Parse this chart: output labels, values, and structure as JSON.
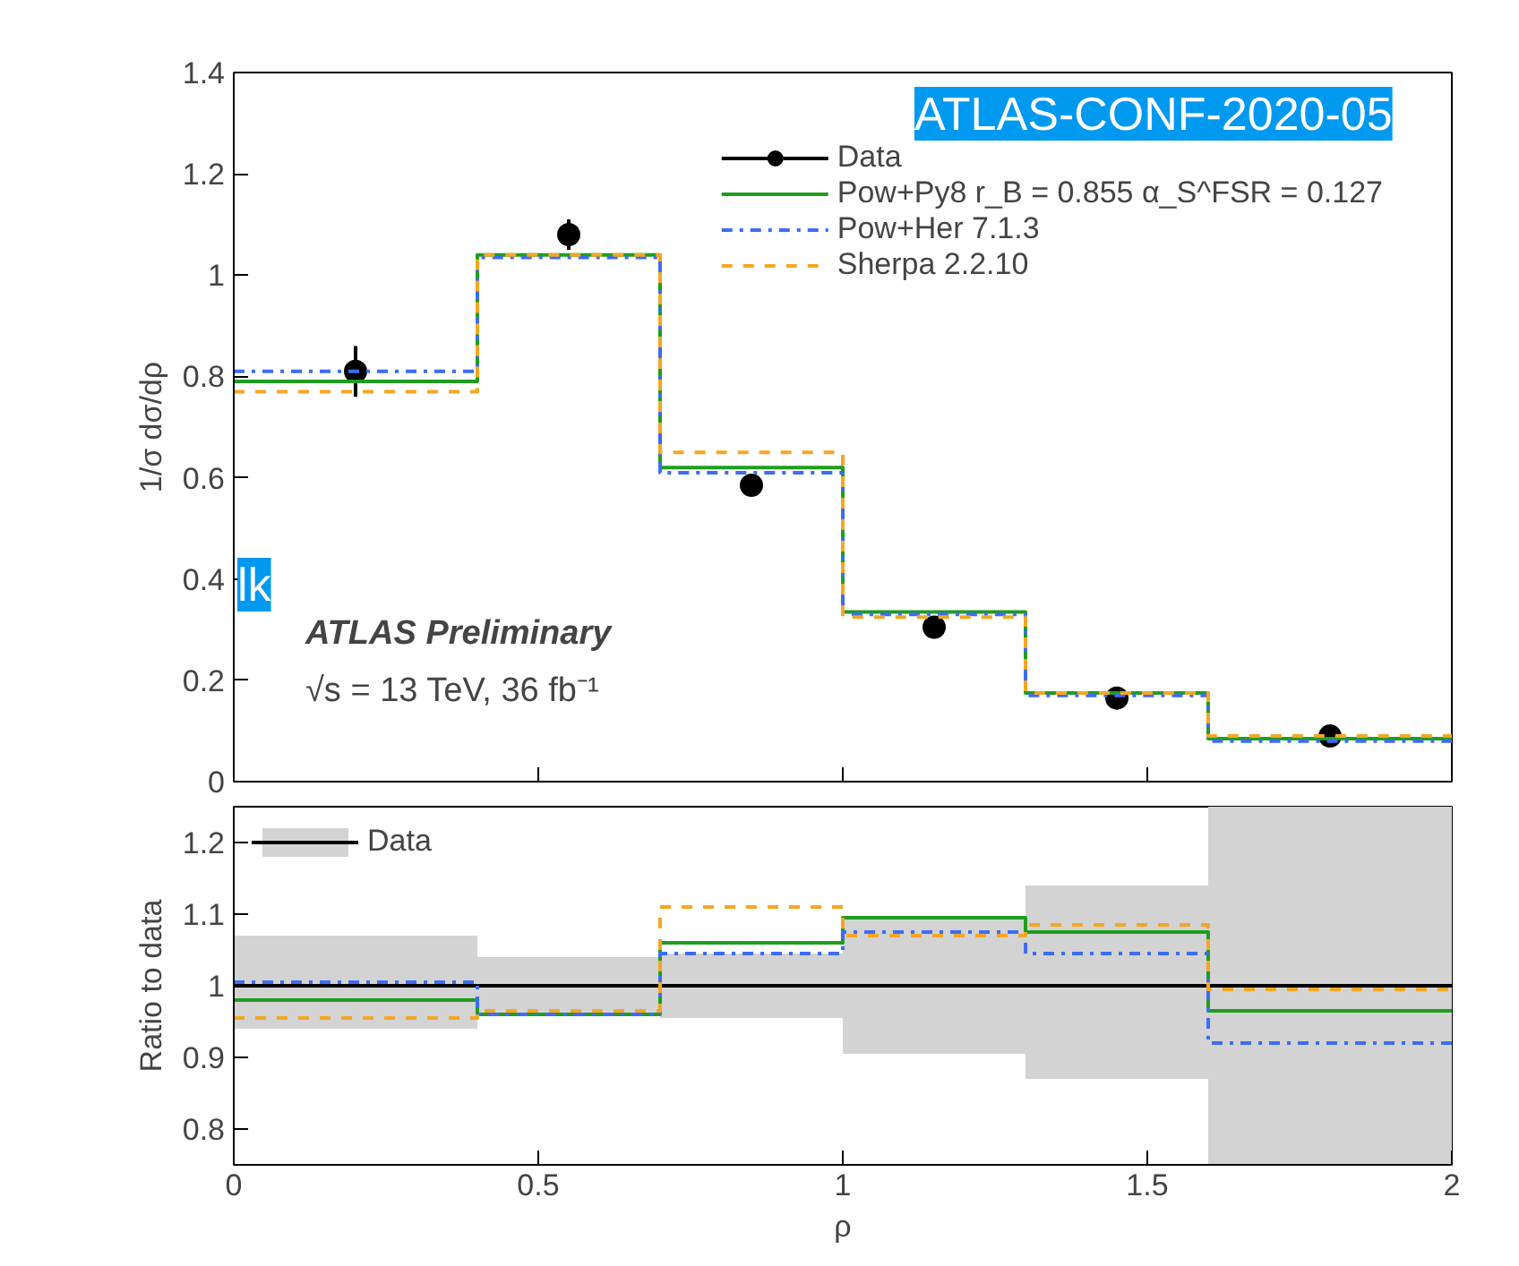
{
  "chart_data": [
    {
      "type": "step",
      "ylabel": "1/σ dσ/dρ",
      "xlim": [
        0,
        2
      ],
      "xticks": [
        0,
        0.5,
        1,
        1.5,
        2
      ],
      "ylim": [
        0,
        1.4
      ],
      "yticks": [
        0,
        0.2,
        0.4,
        0.6,
        0.8,
        1,
        1.2,
        1.4
      ],
      "tick_labels": "y",
      "legend": "top right",
      "grid": false,
      "annotations": [
        "ATLAS Preliminary",
        "√s = 13 TeV, 36 fb⁻¹",
        "ATLAS-CONF-2020-05",
        "lk"
      ],
      "series": [
        {
          "name": "Data",
          "type": "scatter",
          "color": "#000000",
          "marker": "circle",
          "x": [
            0.2,
            0.55,
            0.85,
            1.15,
            1.45,
            1.8
          ],
          "values": [
            0.81,
            1.08,
            0.585,
            0.305,
            0.165,
            0.09
          ],
          "errors": [
            0.05,
            0.03,
            0.015,
            0.02,
            0.015,
            0.02
          ]
        },
        {
          "name": "Pow+Py8 r_B = 0.855 α_S^FSR = 0.127",
          "color": "#1e9e1e",
          "line_style": "solid",
          "x": [
            0,
            0.4,
            0.7,
            1.0,
            1.3,
            1.6,
            2.0
          ],
          "values": [
            0.79,
            1.04,
            0.62,
            0.335,
            0.175,
            0.085,
            0.085
          ]
        },
        {
          "name": "Pow+Her 7.1.3",
          "color": "#3d6cf5",
          "line_style": "dashdot",
          "x": [
            0,
            0.4,
            0.7,
            1.0,
            1.3,
            1.6,
            2.0
          ],
          "values": [
            0.81,
            1.035,
            0.61,
            0.33,
            0.17,
            0.08,
            0.08
          ]
        },
        {
          "name": "Sherpa 2.2.10",
          "color": "#f5a623",
          "line_style": "dashed",
          "x": [
            0,
            0.4,
            0.7,
            1.0,
            1.3,
            1.6,
            2.0
          ],
          "values": [
            0.77,
            1.04,
            0.65,
            0.325,
            0.175,
            0.09,
            0.09
          ]
        }
      ]
    },
    {
      "type": "step",
      "ylabel": "Ratio to data",
      "xlabel": "ρ",
      "xlim": [
        0,
        2
      ],
      "xticks": [
        0,
        0.5,
        1,
        1.5,
        2
      ],
      "ylim": [
        0.75,
        1.25
      ],
      "yticks": [
        0.8,
        0.9,
        1,
        1.1,
        1.2
      ],
      "legend": "top left",
      "grid": false,
      "series": [
        {
          "name": "Data",
          "color": "#000000",
          "line_style": "solid",
          "x": [
            0,
            0.4,
            0.7,
            1.0,
            1.3,
            1.6,
            2.0
          ],
          "values": [
            1,
            1,
            1,
            1,
            1,
            1,
            1
          ],
          "lower": [
            0.94,
            0.96,
            0.955,
            0.905,
            0.87,
            0.75,
            0.75
          ],
          "upper": [
            1.07,
            1.04,
            1.045,
            1.095,
            1.14,
            1.25,
            1.25
          ]
        },
        {
          "color": "#1e9e1e",
          "line_style": "solid",
          "x": [
            0,
            0.4,
            0.7,
            1.0,
            1.3,
            1.6,
            2.0
          ],
          "values": [
            0.98,
            0.96,
            1.06,
            1.095,
            1.075,
            0.965,
            0.965
          ]
        },
        {
          "color": "#3d6cf5",
          "line_style": "dashdot",
          "x": [
            0,
            0.4,
            0.7,
            1.0,
            1.3,
            1.6,
            2.0
          ],
          "values": [
            1.005,
            0.96,
            1.045,
            1.075,
            1.045,
            0.92,
            0.92
          ]
        },
        {
          "color": "#f5a623",
          "line_style": "dashed",
          "x": [
            0,
            0.4,
            0.7,
            1.0,
            1.3,
            1.6,
            2.0
          ],
          "values": [
            0.955,
            0.965,
            1.11,
            1.07,
            1.085,
            0.995,
            0.995
          ]
        }
      ]
    }
  ]
}
